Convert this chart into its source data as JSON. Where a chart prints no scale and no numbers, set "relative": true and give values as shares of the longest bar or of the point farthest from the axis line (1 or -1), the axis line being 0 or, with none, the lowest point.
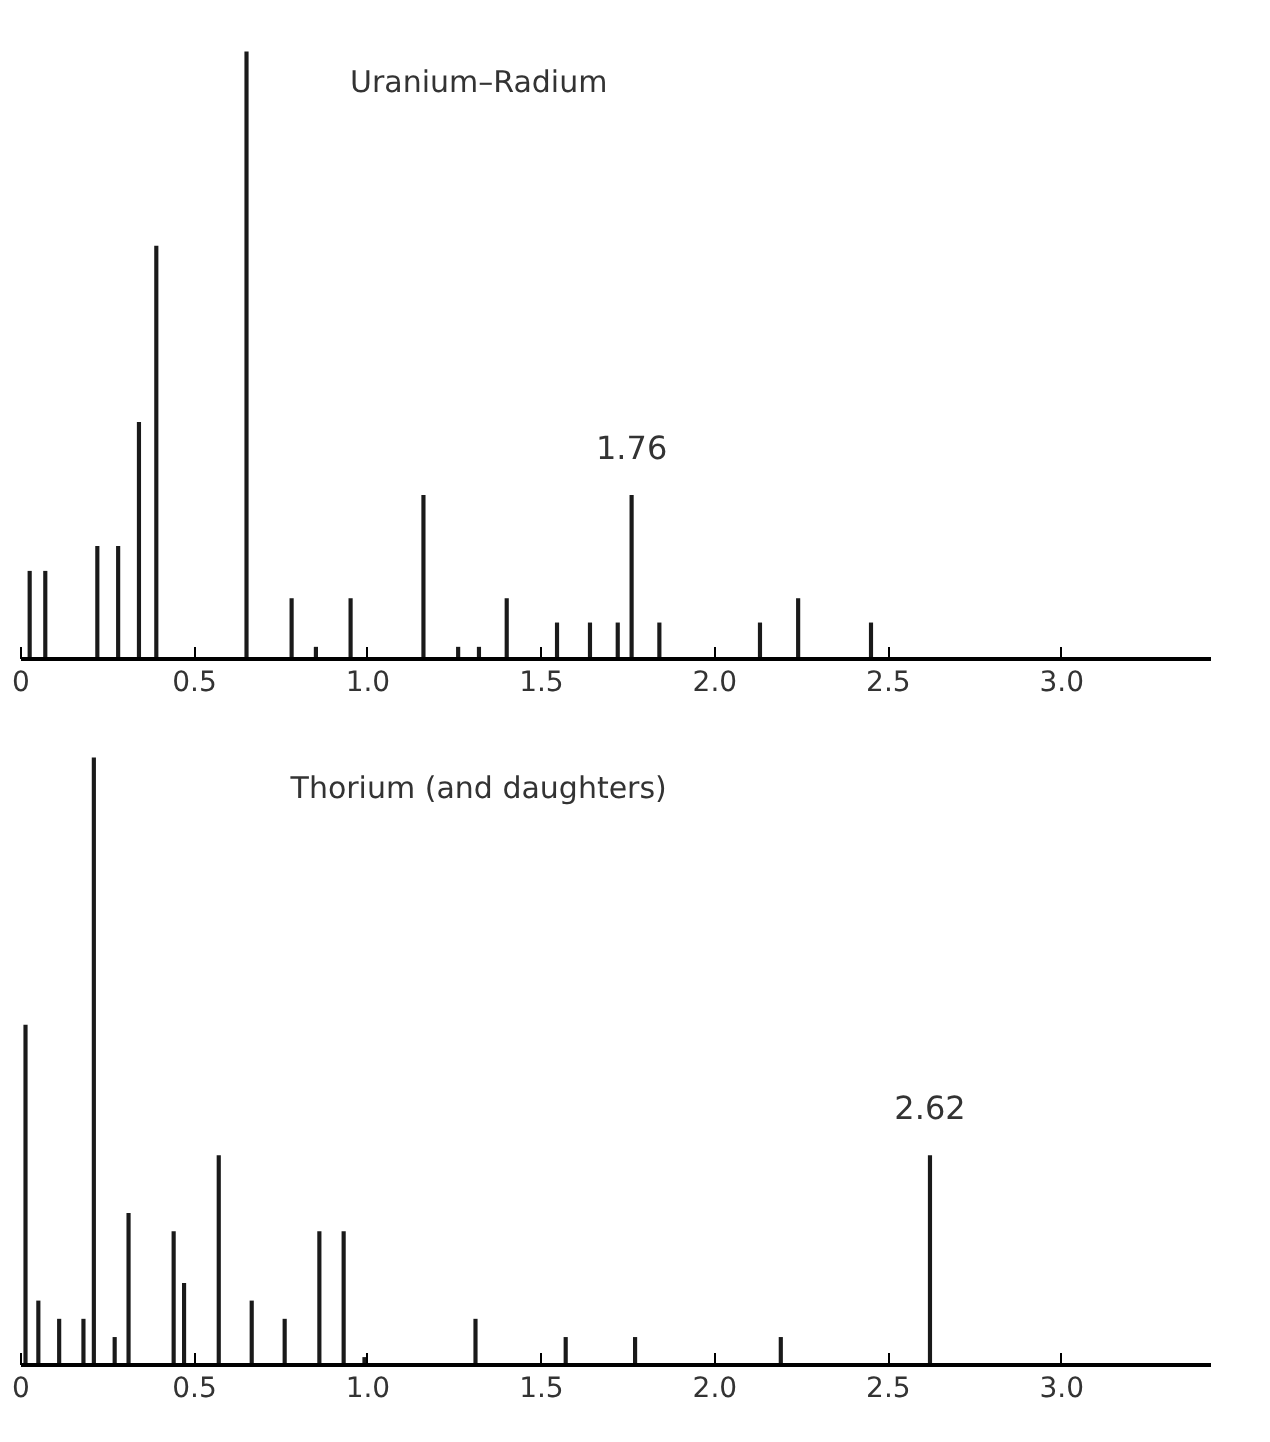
{
  "chart_data": [
    {
      "type": "bar",
      "title": "Uranium–Radium",
      "relative": true,
      "color": "#1a1a1a",
      "x": [
        0.025,
        0.07,
        0.22,
        0.28,
        0.34,
        0.39,
        0.65,
        0.78,
        0.85,
        0.95,
        1.16,
        1.26,
        1.32,
        1.4,
        1.545,
        1.64,
        1.72,
        1.76,
        1.84,
        2.13,
        2.24,
        2.45
      ],
      "values": [
        0.145,
        0.145,
        0.186,
        0.186,
        0.39,
        0.68,
        1,
        0.1,
        0.02,
        0.1,
        0.27,
        0.02,
        0.02,
        0.1,
        0.06,
        0.06,
        0.06,
        0.27,
        0.06,
        0.06,
        0.1,
        0.06
      ],
      "xlim": [
        0,
        3.43
      ],
      "xticks": [
        0,
        0.5,
        {
          "value": 1,
          "label": "1.0"
        },
        1.5,
        {
          "value": 2,
          "label": "2.0"
        },
        2.5,
        {
          "value": 3,
          "label": "3.0"
        }
      ],
      "annotations": [
        {
          "text": "1.76",
          "x": 1.76,
          "y": 0.27
        }
      ]
    },
    {
      "type": "bar",
      "title": "Thorium (and daughters)",
      "relative": true,
      "color": "#1a1a1a",
      "x": [
        0.013,
        0.05,
        0.11,
        0.18,
        0.21,
        0.27,
        0.31,
        0.44,
        0.47,
        0.57,
        0.665,
        0.76,
        0.86,
        0.93,
        0.99,
        1.31,
        1.57,
        1.77,
        2.19,
        2.62
      ],
      "values": [
        0.56,
        0.106,
        0.076,
        0.076,
        1,
        0.046,
        0.25,
        0.22,
        0.135,
        0.345,
        0.106,
        0.076,
        0.22,
        0.22,
        0.013,
        0.076,
        0.046,
        0.046,
        0.046,
        0.345
      ],
      "xlim": [
        0,
        3.43
      ],
      "xticks": [
        0,
        0.5,
        {
          "value": 1,
          "label": "1.0"
        },
        1.5,
        {
          "value": 2,
          "label": "2.0"
        },
        2.5,
        {
          "value": 3,
          "label": "3.0"
        }
      ],
      "annotations": [
        {
          "text": "2.62",
          "x": 2.62,
          "y": 0.345
        }
      ]
    }
  ]
}
